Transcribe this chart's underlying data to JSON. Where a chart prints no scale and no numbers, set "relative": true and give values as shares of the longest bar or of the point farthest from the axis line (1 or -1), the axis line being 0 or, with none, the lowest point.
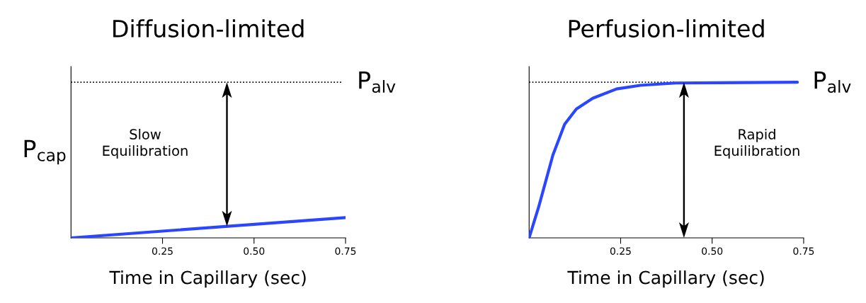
{
  "chart_data": [
    {
      "type": "line",
      "title": "Diffusion-limited",
      "xlabel": "Time in Capillary (sec)",
      "ylabel": "P$_{cap}$",
      "relative": true,
      "tick_labels": "x",
      "grid": false,
      "legend": false,
      "xlim": [
        0,
        0.75
      ],
      "xticks": [
        {
          "value": 0.25,
          "label": "0.25"
        },
        {
          "value": 0.5,
          "label": "0.50"
        },
        {
          "value": 0.75,
          "label": "0.75"
        }
      ],
      "annotations": [
        "Slow\nEquilibration"
      ],
      "series": [
        {
          "name": "P$_{alv}$",
          "color": "#000000",
          "line_style": "dotted",
          "x": [
            0,
            0.74
          ],
          "values": [
            1,
            1
          ]
        },
        {
          "color": "#2a46ff",
          "line_style": "solid",
          "x": [
            0,
            0.75
          ],
          "values": [
            0,
            0.13
          ]
        }
      ]
    },
    {
      "type": "line",
      "title": "Perfusion-limited",
      "xlabel": "Time in Capillary (sec)",
      "relative": true,
      "tick_labels": "x",
      "grid": false,
      "legend": false,
      "xlim": [
        0,
        0.75
      ],
      "xticks": [
        {
          "value": 0.25,
          "label": "0.25"
        },
        {
          "value": 0.5,
          "label": "0.50"
        },
        {
          "value": 0.75,
          "label": "0.75"
        }
      ],
      "annotations": [
        "Rapid\nEquilibration"
      ],
      "series": [
        {
          "color": "#000000",
          "line_style": "dotted",
          "x": [
            0,
            0.4
          ],
          "values": [
            1,
            1
          ]
        },
        {
          "name": "P$_{alv}$",
          "color": "#2a46ff",
          "line_style": "solid",
          "x": [
            0,
            0.026,
            0.065,
            0.097,
            0.129,
            0.174,
            0.239,
            0.304,
            0.401,
            0.733
          ],
          "values": [
            0,
            0.198,
            0.532,
            0.73,
            0.828,
            0.897,
            0.957,
            0.98,
            0.995,
            1.0
          ]
        }
      ]
    }
  ]
}
